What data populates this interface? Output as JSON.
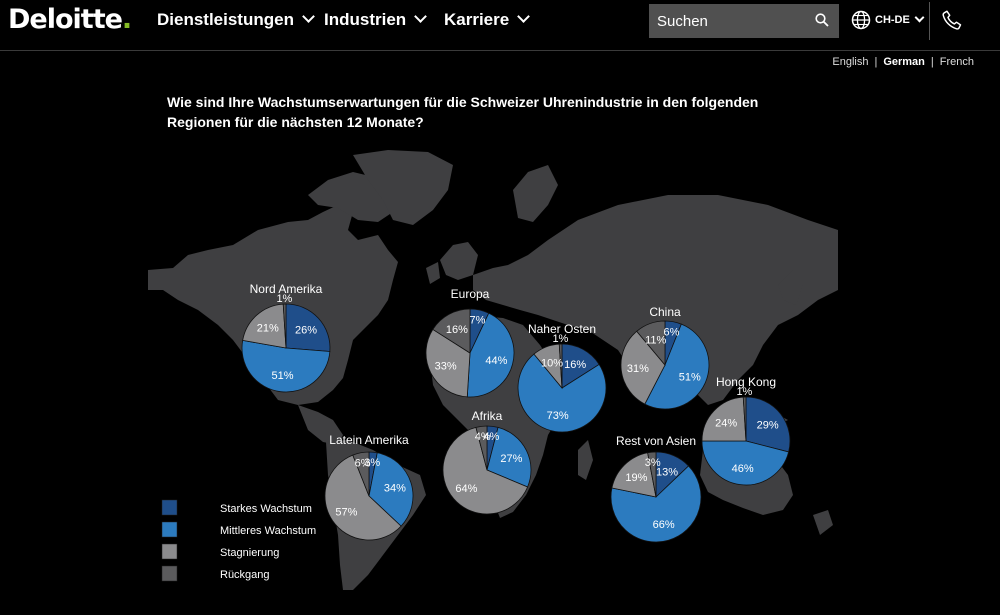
{
  "nav": {
    "logo": "Deloitte",
    "items": [
      {
        "label": "Dienstleistungen"
      },
      {
        "label": "Industrien"
      },
      {
        "label": "Karriere"
      }
    ],
    "search_placeholder": "Suchen",
    "locale": "CH-DE"
  },
  "languages": {
    "english": "English",
    "german": "German",
    "french": "French",
    "active": "German"
  },
  "chart_data": {
    "type": "pie",
    "title": "Wie sind Ihre Wachstumserwartungen für die Schweizer Uhrenindustrie in den folgenden Regionen für die nächsten 12 Monate?",
    "categories": [
      "Starkes Wachstum",
      "Mittleres Wachstum",
      "Stagnierung",
      "Rückgang"
    ],
    "colors": {
      "Starkes Wachstum": "#1f4e8a",
      "Mittleres Wachstum": "#2c7bbf",
      "Stagnierung": "#8b8b8d",
      "Rückgang": "#5b5b5d"
    },
    "regions": [
      {
        "name": "Nord Amerika",
        "values": [
          26,
          51,
          21,
          1
        ]
      },
      {
        "name": "Europa",
        "values": [
          7,
          44,
          33,
          16
        ]
      },
      {
        "name": "Naher Osten",
        "values": [
          16,
          73,
          10,
          1
        ]
      },
      {
        "name": "China",
        "values": [
          6,
          51,
          31,
          11
        ]
      },
      {
        "name": "Hong Kong",
        "values": [
          29,
          46,
          24,
          1
        ]
      },
      {
        "name": "Latein Amerika",
        "values": [
          3,
          34,
          57,
          6
        ]
      },
      {
        "name": "Afrika",
        "values": [
          4,
          27,
          64,
          4
        ]
      },
      {
        "name": "Rest von Asien",
        "values": [
          13,
          66,
          19,
          3
        ]
      }
    ],
    "legend": [
      "Starkes Wachstum",
      "Mittleres Wachstum",
      "Stagnierung",
      "Rückgang"
    ],
    "legend_position": "bottom-left"
  }
}
